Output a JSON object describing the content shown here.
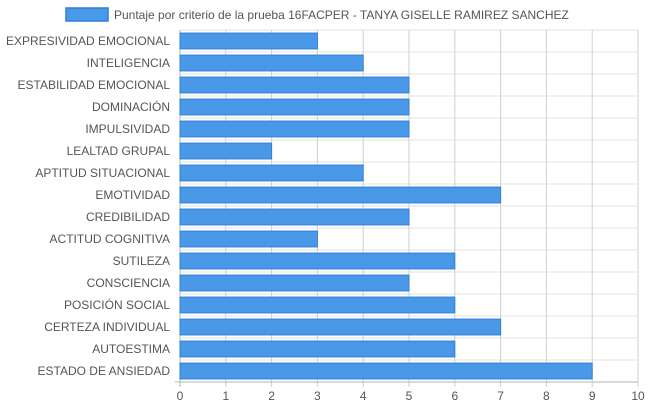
{
  "chart_data": {
    "type": "bar",
    "orientation": "horizontal",
    "categories": [
      "EXPRESIVIDAD EMOCIONAL",
      "INTELIGENCIA",
      "ESTABILIDAD EMOCIONAL",
      "DOMINACIÓN",
      "IMPULSIVIDAD",
      "LEALTAD GRUPAL",
      "APTITUD SITUACIONAL",
      "EMOTIVIDAD",
      "CREDIBILIDAD",
      "ACTITUD COGNITIVA",
      "SUTILEZA",
      "CONSCIENCIA",
      "POSICIÓN SOCIAL",
      "CERTEZA INDIVIDUAL",
      "AUTOESTIMA",
      "ESTADO DE ANSIEDAD"
    ],
    "series": [
      {
        "name": "Puntaje por criterio de la prueba 16FACPER - TANYA GISELLE RAMIREZ SANCHEZ",
        "values": [
          3,
          4,
          5,
          5,
          5,
          2,
          4,
          7,
          5,
          3,
          6,
          5,
          6,
          7,
          6,
          9
        ],
        "color": "#4a99e9",
        "border_color": "#2f7fd6"
      }
    ],
    "x_ticks": [
      "0",
      "1",
      "2",
      "3",
      "4",
      "5",
      "6",
      "7",
      "8",
      "9",
      "10"
    ],
    "xlim": [
      0,
      10
    ],
    "grid": true,
    "legend_position": "top"
  }
}
